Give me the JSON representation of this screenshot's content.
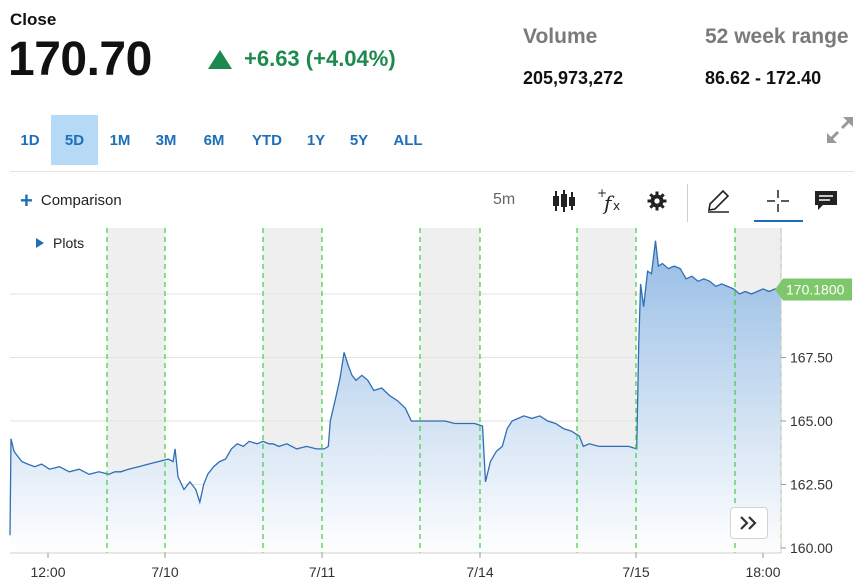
{
  "quote": {
    "close_label": "Close",
    "price": "170.70",
    "change": "+6.63 (+4.04%)",
    "direction": "up",
    "up_color": "#1c8a4e",
    "volume_label": "Volume",
    "volume": "205,973,272",
    "range_label": "52 week range",
    "range": "86.62 - 172.40"
  },
  "range_tabs": [
    {
      "label": "1D",
      "active": false
    },
    {
      "label": "5D",
      "active": true
    },
    {
      "label": "1M",
      "active": false
    },
    {
      "label": "3M",
      "active": false
    },
    {
      "label": "6M",
      "active": false
    },
    {
      "label": "YTD",
      "active": false
    },
    {
      "label": "1Y",
      "active": false
    },
    {
      "label": "5Y",
      "active": false
    },
    {
      "label": "ALL",
      "active": false
    }
  ],
  "toolbar": {
    "comparison_label": "Comparison",
    "interval": "5m",
    "icons": [
      "candlestick-icon",
      "function-icon",
      "gear-icon",
      "pencil-icon",
      "crosshair-icon",
      "comment-icon"
    ],
    "active_tool": "crosshair-icon"
  },
  "plots_label": "Plots",
  "chart_data": {
    "type": "area",
    "x_tick_labels": [
      "12:00",
      "7/10",
      "7/11",
      "7/14",
      "7/15",
      "18:00"
    ],
    "y_tick_labels": [
      "160.00",
      "162.50",
      "165.00",
      "167.50"
    ],
    "ylim": [
      159.8,
      172.6
    ],
    "current_value_label": "170.1800",
    "current_value": 170.18,
    "line_color": "#2f6eb5",
    "fill_color": "#a9c8ea",
    "session_marker_color": "#3ccf3c",
    "grid": true,
    "series": [
      {
        "values": [
          [
            0,
            160.5
          ],
          [
            1,
            164.3
          ],
          [
            4,
            163.8
          ],
          [
            8,
            163.6
          ],
          [
            12,
            163.4
          ],
          [
            18,
            163.3
          ],
          [
            25,
            163.2
          ],
          [
            32,
            163.3
          ],
          [
            40,
            163.1
          ],
          [
            50,
            163.2
          ],
          [
            60,
            163.0
          ],
          [
            70,
            163.1
          ],
          [
            80,
            162.9
          ],
          [
            90,
            163.0
          ],
          [
            100,
            162.9
          ],
          [
            106,
            163.0
          ],
          [
            112,
            163.0
          ],
          [
            120,
            163.1
          ],
          [
            130,
            163.2
          ],
          [
            140,
            163.3
          ],
          [
            150,
            163.4
          ],
          [
            160,
            163.5
          ],
          [
            165,
            163.4
          ],
          [
            167,
            163.9
          ],
          [
            170,
            162.8
          ],
          [
            176,
            162.3
          ],
          [
            182,
            162.6
          ],
          [
            188,
            162.3
          ],
          [
            192,
            161.8
          ],
          [
            196,
            162.5
          ],
          [
            200,
            162.9
          ],
          [
            206,
            163.2
          ],
          [
            212,
            163.4
          ],
          [
            218,
            163.5
          ],
          [
            224,
            163.9
          ],
          [
            230,
            164.1
          ],
          [
            236,
            164.0
          ],
          [
            242,
            164.2
          ],
          [
            250,
            164.1
          ],
          [
            256,
            164.2
          ],
          [
            262,
            164.1
          ],
          [
            266,
            164.1
          ],
          [
            272,
            164.0
          ],
          [
            280,
            164.1
          ],
          [
            290,
            163.9
          ],
          [
            300,
            164.0
          ],
          [
            310,
            163.9
          ],
          [
            318,
            163.9
          ],
          [
            322,
            164.0
          ],
          [
            324,
            165.0
          ],
          [
            330,
            166.0
          ],
          [
            334,
            166.7
          ],
          [
            338,
            167.7
          ],
          [
            342,
            167.2
          ],
          [
            346,
            166.8
          ],
          [
            350,
            166.6
          ],
          [
            356,
            166.8
          ],
          [
            362,
            166.6
          ],
          [
            368,
            166.2
          ],
          [
            376,
            166.3
          ],
          [
            384,
            166.0
          ],
          [
            392,
            165.8
          ],
          [
            400,
            165.5
          ],
          [
            406,
            165.0
          ],
          [
            412,
            165.0
          ],
          [
            420,
            165.0
          ],
          [
            430,
            165.0
          ],
          [
            440,
            165.0
          ],
          [
            450,
            164.9
          ],
          [
            460,
            164.9
          ],
          [
            470,
            164.9
          ],
          [
            478,
            164.8
          ],
          [
            481,
            162.6
          ],
          [
            486,
            163.4
          ],
          [
            492,
            163.8
          ],
          [
            498,
            164.0
          ],
          [
            503,
            164.7
          ],
          [
            508,
            165.0
          ],
          [
            514,
            165.1
          ],
          [
            520,
            165.2
          ],
          [
            528,
            165.1
          ],
          [
            536,
            165.2
          ],
          [
            544,
            165.0
          ],
          [
            552,
            164.9
          ],
          [
            560,
            164.7
          ],
          [
            568,
            164.6
          ],
          [
            576,
            164.4
          ],
          [
            580,
            164.0
          ],
          [
            586,
            164.1
          ],
          [
            596,
            164.0
          ],
          [
            606,
            164.0
          ],
          [
            616,
            164.0
          ],
          [
            626,
            164.0
          ],
          [
            634,
            163.9
          ],
          [
            636,
            168.0
          ],
          [
            638,
            170.4
          ],
          [
            641,
            169.5
          ],
          [
            645,
            170.9
          ],
          [
            649,
            170.8
          ],
          [
            653,
            172.1
          ],
          [
            656,
            171.1
          ],
          [
            660,
            171.2
          ],
          [
            666,
            171.0
          ],
          [
            672,
            171.1
          ],
          [
            678,
            171.0
          ],
          [
            684,
            170.6
          ],
          [
            690,
            170.7
          ],
          [
            696,
            170.5
          ],
          [
            702,
            170.6
          ],
          [
            708,
            170.5
          ],
          [
            714,
            170.3
          ],
          [
            720,
            170.4
          ],
          [
            726,
            170.3
          ],
          [
            732,
            170.2
          ],
          [
            738,
            170.0
          ],
          [
            744,
            170.1
          ],
          [
            750,
            170.0
          ],
          [
            756,
            170.1
          ],
          [
            762,
            170.2
          ],
          [
            768,
            170.1
          ],
          [
            774,
            170.2
          ],
          [
            780,
            170.18
          ]
        ]
      }
    ]
  }
}
